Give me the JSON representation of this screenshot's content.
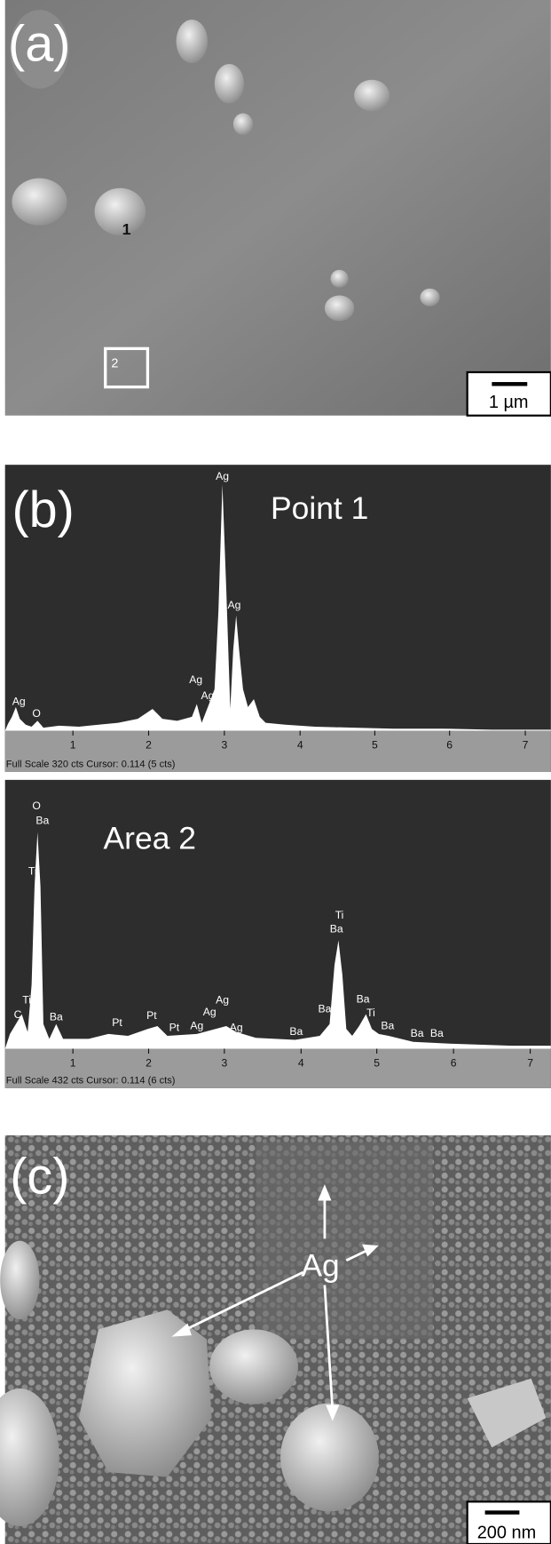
{
  "panels": {
    "a": {
      "label": "(a)",
      "scale_bar": "1 µm",
      "marker_1": "1",
      "marker_2": "2"
    },
    "b": {
      "label": "(b)"
    },
    "c": {
      "label": "(c)",
      "annotation": "Ag",
      "scale_bar": "200 nm"
    }
  },
  "spectra": [
    {
      "title": "Point 1",
      "axis_ticks": [
        "1",
        "2",
        "3",
        "4",
        "5",
        "6",
        "7"
      ],
      "footer": "Full Scale 320 cts Cursor: 0.114  (5 cts)",
      "peak_labels": [
        "Ag",
        "O",
        "Ag",
        "Ag",
        "Ag",
        "Ag"
      ]
    },
    {
      "title": "Area 2",
      "axis_ticks": [
        "1",
        "2",
        "3",
        "4",
        "5",
        "6",
        "7"
      ],
      "footer": "Full Scale 432 cts Cursor: 0.114  (6 cts)",
      "peak_labels": [
        "O",
        "Ba",
        "Ti",
        "C",
        "Ti",
        "Ba",
        "Pt",
        "Pt",
        "Pt",
        "Ag",
        "Ag",
        "Ag",
        "Ag",
        "Ba",
        "Ba",
        "Ti",
        "Ba",
        "Ba",
        "Ti",
        "Ba",
        "Ba",
        "Ba"
      ]
    }
  ]
}
